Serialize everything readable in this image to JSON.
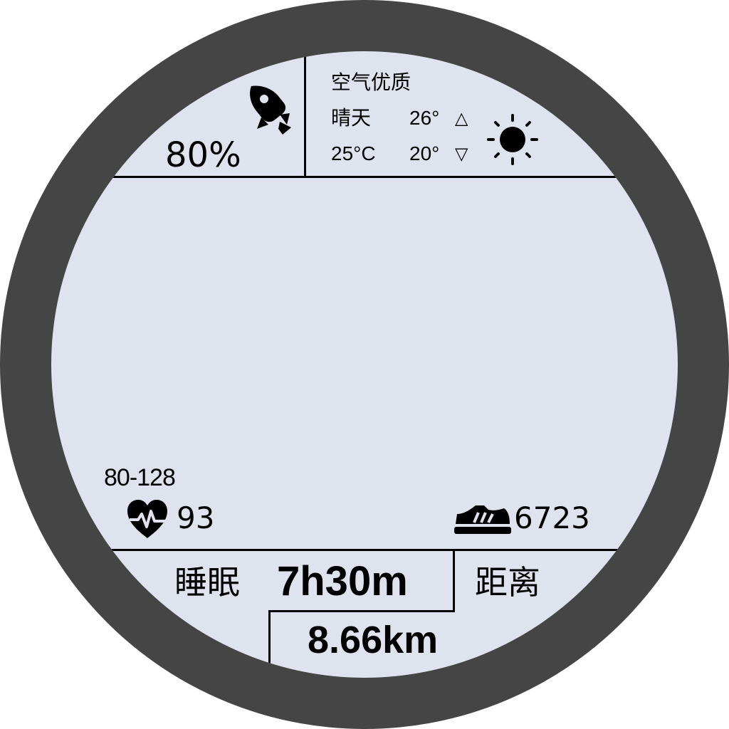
{
  "battery": {
    "percent_text": "80%",
    "icon": "rocket-icon"
  },
  "weather": {
    "air_quality": "空气优质",
    "condition": "晴天",
    "current_temp": "25°C",
    "high_temp": "26°",
    "low_temp": "20°",
    "high_indicator": "△",
    "low_indicator": "▽",
    "icon": "sun-icon"
  },
  "heart_rate": {
    "range": "80-128",
    "value": "93",
    "icon": "heart-pulse-icon"
  },
  "steps": {
    "value": "6723",
    "icon": "shoe-icon"
  },
  "sleep": {
    "label": "睡眠",
    "value": "7h30m"
  },
  "distance": {
    "label": "距离",
    "value": "8.66km"
  },
  "colors": {
    "bezel": "#454545",
    "face": "#dfe3ee",
    "ink": "#000000"
  }
}
